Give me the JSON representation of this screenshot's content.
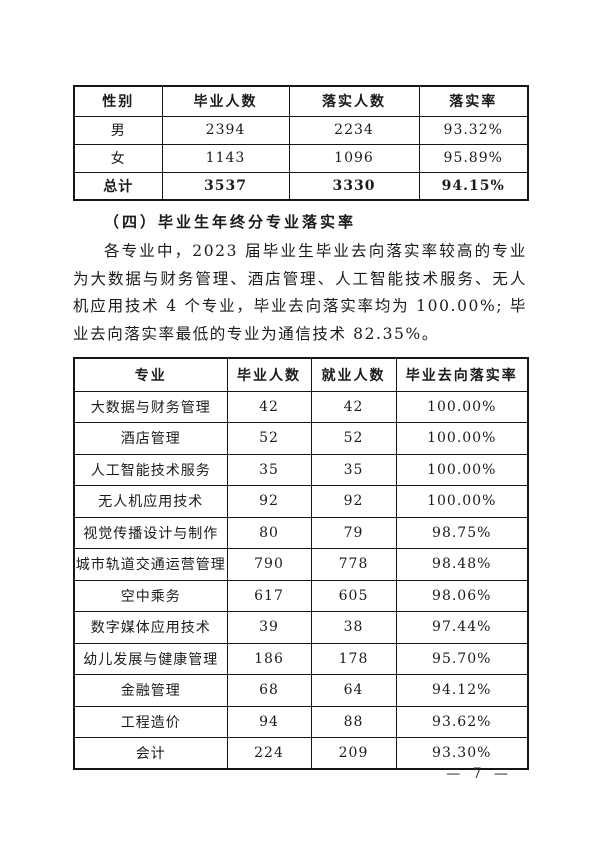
{
  "gender_table": {
    "headers": [
      "性别",
      "毕业人数",
      "落实人数",
      "落实率"
    ],
    "rows": [
      {
        "cells": [
          "男",
          "2394",
          "2234",
          "93.32%"
        ],
        "bold": false
      },
      {
        "cells": [
          "女",
          "1143",
          "1096",
          "95.89%"
        ],
        "bold": false
      },
      {
        "cells": [
          "总计",
          "3537",
          "3330",
          "94.15%"
        ],
        "bold": true
      }
    ]
  },
  "section": {
    "heading": "（四）毕业生年终分专业落实率",
    "paragraph": "各专业中，2023 届毕业生毕业去向落实率较高的专业为大数据与财务管理、酒店管理、人工智能技术服务、无人机应用技术 4 个专业，毕业去向落实率均为 100.00%; 毕业去向落实率最低的专业为通信技术 82.35%。"
  },
  "major_table": {
    "headers": [
      "专业",
      "毕业人数",
      "就业人数",
      "毕业去向落实率"
    ],
    "rows": [
      {
        "cells": [
          "大数据与财务管理",
          "42",
          "42",
          "100.00%"
        ],
        "bold": false
      },
      {
        "cells": [
          "酒店管理",
          "52",
          "52",
          "100.00%"
        ],
        "bold": false
      },
      {
        "cells": [
          "人工智能技术服务",
          "35",
          "35",
          "100.00%"
        ],
        "bold": false
      },
      {
        "cells": [
          "无人机应用技术",
          "92",
          "92",
          "100.00%"
        ],
        "bold": false
      },
      {
        "cells": [
          "视觉传播设计与制作",
          "80",
          "79",
          "98.75%"
        ],
        "bold": false
      },
      {
        "cells": [
          "城市轨道交通运营管理",
          "790",
          "778",
          "98.48%"
        ],
        "bold": false
      },
      {
        "cells": [
          "空中乘务",
          "617",
          "605",
          "98.06%"
        ],
        "bold": false
      },
      {
        "cells": [
          "数字媒体应用技术",
          "39",
          "38",
          "97.44%"
        ],
        "bold": false
      },
      {
        "cells": [
          "幼儿发展与健康管理",
          "186",
          "178",
          "95.70%"
        ],
        "bold": false
      },
      {
        "cells": [
          "金融管理",
          "68",
          "64",
          "94.12%"
        ],
        "bold": false
      },
      {
        "cells": [
          "工程造价",
          "94",
          "88",
          "93.62%"
        ],
        "bold": false
      },
      {
        "cells": [
          "会计",
          "224",
          "209",
          "93.30%"
        ],
        "bold": false
      }
    ]
  },
  "footer": {
    "page_number": "— 7 —"
  }
}
